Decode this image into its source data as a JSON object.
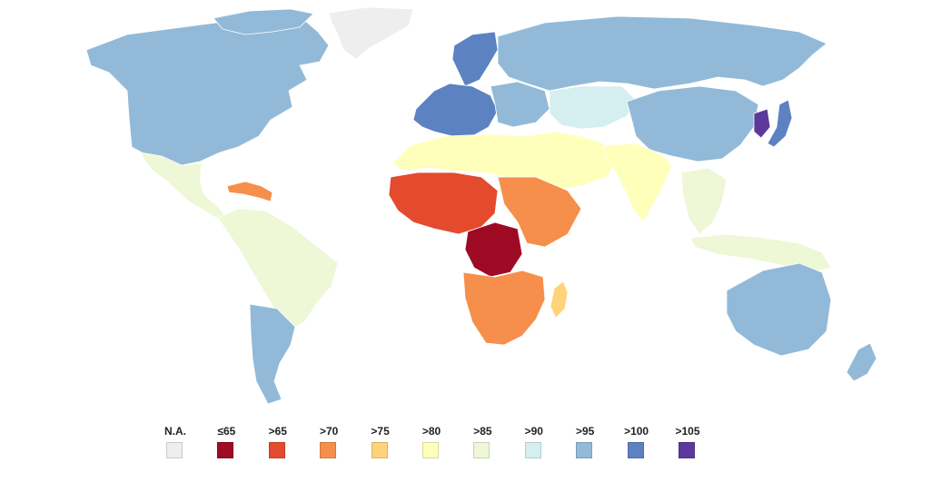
{
  "map": {
    "ocean_color": "#ffffff",
    "border_color": "#ffffff",
    "regions": [
      {
        "name": "north-america",
        "class": ">95",
        "color": "#92bad8"
      },
      {
        "name": "greenland",
        "class": "N.A.",
        "color": "#eeeeee"
      },
      {
        "name": "mexico-central-america",
        "class": ">85",
        "color": "#eef7d6"
      },
      {
        "name": "caribbean",
        "class": ">70",
        "color": "#f68f4c"
      },
      {
        "name": "south-america",
        "class": ">85",
        "color": "#eef7d6"
      },
      {
        "name": "southern-cone",
        "class": ">95",
        "color": "#92bad8"
      },
      {
        "name": "western-europe",
        "class": ">100",
        "color": "#5d82c2"
      },
      {
        "name": "scandinavia",
        "class": ">100",
        "color": "#5d82c2"
      },
      {
        "name": "eastern-europe",
        "class": ">95",
        "color": "#92bad8"
      },
      {
        "name": "russia",
        "class": ">95",
        "color": "#92bad8"
      },
      {
        "name": "central-asia",
        "class": ">90",
        "color": "#d5eef0"
      },
      {
        "name": "north-africa-middle-east",
        "class": ">80",
        "color": "#feffbb"
      },
      {
        "name": "south-asia",
        "class": ">80",
        "color": "#feffbb"
      },
      {
        "name": "china",
        "class": ">95",
        "color": "#92bad8"
      },
      {
        "name": "korea",
        "class": ">105",
        "color": "#5b3a9b"
      },
      {
        "name": "japan",
        "class": ">100",
        "color": "#5d82c2"
      },
      {
        "name": "southeast-asia",
        "class": ">85",
        "color": "#eef7d6"
      },
      {
        "name": "west-africa",
        "class": ">65",
        "color": "#e34a2e"
      },
      {
        "name": "central-africa",
        "class": "≤65",
        "color": "#9e0a24"
      },
      {
        "name": "east-africa",
        "class": ">70",
        "color": "#f68f4c"
      },
      {
        "name": "southern-africa",
        "class": ">70",
        "color": "#f68f4c"
      },
      {
        "name": "madagascar",
        "class": ">75",
        "color": "#fed379"
      },
      {
        "name": "australia",
        "class": ">95",
        "color": "#92bad8"
      },
      {
        "name": "new-zealand",
        "class": ">95",
        "color": "#92bad8"
      }
    ]
  },
  "legend": {
    "items": [
      {
        "label": "N.A.",
        "color": "#eeeeee"
      },
      {
        "label": "≤65",
        "color": "#9e0a24"
      },
      {
        "label": ">65",
        "color": "#e34a2e"
      },
      {
        "label": ">70",
        "color": "#f68f4c"
      },
      {
        "label": ">75",
        "color": "#fed379"
      },
      {
        "label": ">80",
        "color": "#feffbb"
      },
      {
        "label": ">85",
        "color": "#eef7d6"
      },
      {
        "label": ">90",
        "color": "#d5eef0"
      },
      {
        "label": ">95",
        "color": "#92bad8"
      },
      {
        "label": ">100",
        "color": "#5d82c2"
      },
      {
        "label": ">105",
        "color": "#5b3a9b"
      }
    ]
  }
}
